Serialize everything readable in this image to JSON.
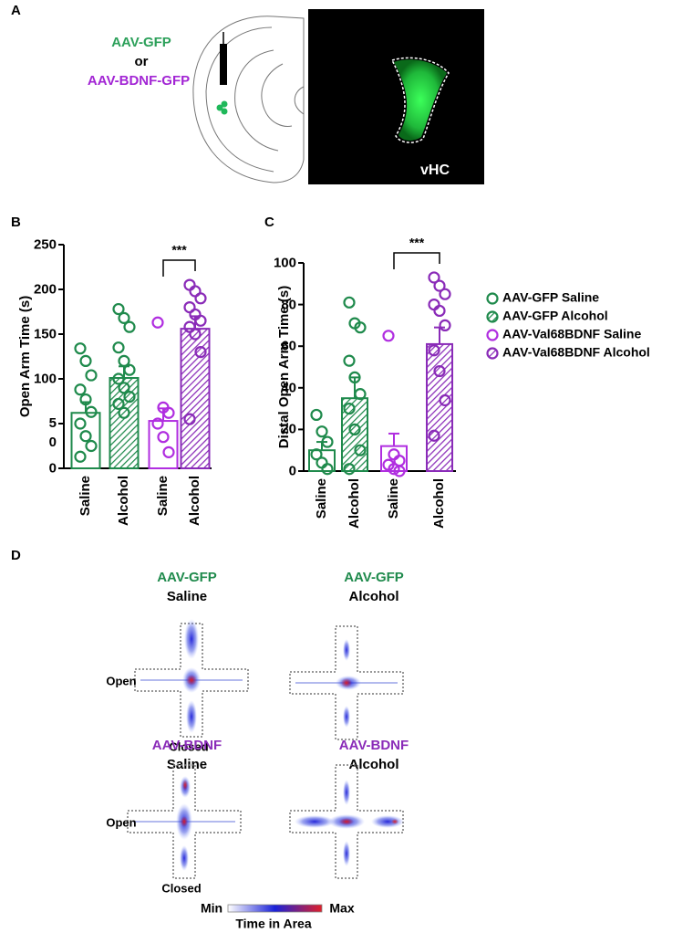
{
  "panel_labels": [
    "A",
    "B",
    "C",
    "D"
  ],
  "panel_a": {
    "construct_1": "AAV-GFP",
    "or": "or",
    "construct_2": "AAV-BDNF-GFP",
    "region": "vHC"
  },
  "legend": [
    {
      "name": "AAV-GFP Saline",
      "color": "#1f8a4c",
      "hatched": false
    },
    {
      "name": "AAV-GFP Alcohol",
      "color": "#1f8a4c",
      "hatched": true
    },
    {
      "name": "AAV-Val68BDNF Saline",
      "color": "#b02ee0",
      "hatched": false
    },
    {
      "name": "AAV-Val68BDNF Alcohol",
      "color": "#8a2bb8",
      "hatched": true
    }
  ],
  "chart_data": [
    {
      "type": "bar",
      "y_label": "Open Arm Time (s)",
      "categories": [
        "Saline",
        "Alcohol",
        "Saline",
        "Alcohol"
      ],
      "values": [
        62,
        101,
        53,
        156
      ],
      "errors": [
        12,
        13,
        14,
        14
      ],
      "points": [
        [
          134,
          120,
          104,
          88,
          77,
          63,
          50,
          36,
          25,
          13
        ],
        [
          178,
          168,
          158,
          135,
          120,
          110,
          100,
          90,
          80,
          72,
          62
        ],
        [
          163,
          68,
          62,
          50,
          35,
          18
        ],
        [
          205,
          198,
          190,
          180,
          172,
          165,
          158,
          150,
          130,
          55
        ]
      ],
      "ylim": [
        0,
        250
      ],
      "yticks": [
        0,
        {
          "value": 50,
          "label": "5\n0"
        },
        100,
        150,
        200,
        250
      ],
      "significance": {
        "label": "***",
        "between": [
          2,
          3
        ]
      }
    },
    {
      "type": "bar",
      "y_label": "Distal Open Arm Time (s)",
      "categories": [
        "Saline",
        "Alcohol",
        "Saline",
        "Alcohol"
      ],
      "values": [
        10,
        35,
        12,
        61
      ],
      "errors": [
        4,
        10,
        6,
        8
      ],
      "points": [
        [
          27,
          19,
          14,
          8,
          4,
          1
        ],
        [
          81,
          71,
          69,
          53,
          45,
          37,
          30,
          20,
          10,
          1
        ],
        [
          65,
          8,
          5,
          3,
          1,
          0
        ],
        [
          93,
          89,
          85,
          80,
          77,
          70,
          58,
          48,
          34,
          17
        ]
      ],
      "ylim": [
        0,
        100
      ],
      "yticks": [
        0,
        20,
        40,
        60,
        80,
        100
      ],
      "significance": {
        "label": "***",
        "between": [
          2,
          3
        ]
      }
    }
  ],
  "panel_d": {
    "mazes": [
      {
        "virus": "AAV-GFP",
        "condition": "Saline",
        "side_label": "Open",
        "bottom_label": "Closed"
      },
      {
        "virus": "AAV-GFP",
        "condition": "Alcohol"
      },
      {
        "virus": "AAV-BDNF",
        "condition": "Saline",
        "side_label": "Open",
        "bottom_label": "Closed"
      },
      {
        "virus": "AAV-BDNF",
        "condition": "Alcohol"
      }
    ],
    "colorbar": {
      "min": "Min",
      "max": "Max",
      "title": "Time in Area"
    }
  }
}
